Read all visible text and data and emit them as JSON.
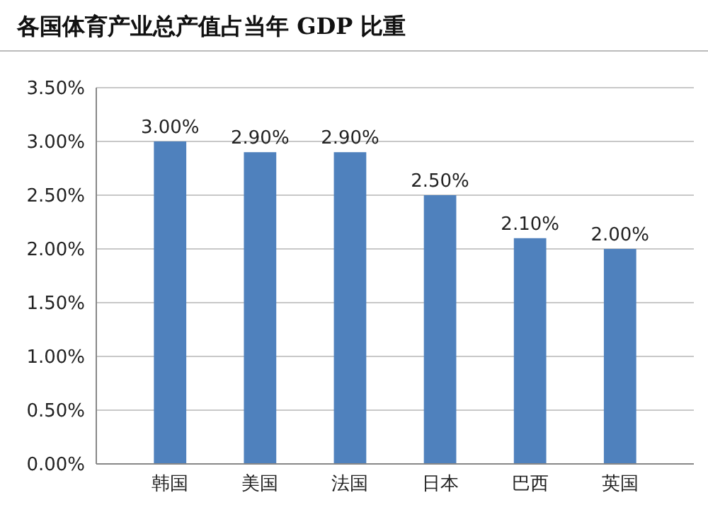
{
  "chart_data": {
    "type": "bar",
    "title": "各国体育产业总产值占当年 GDP 比重",
    "categories": [
      "韩国",
      "美国",
      "法国",
      "日本",
      "巴西",
      "英国"
    ],
    "values": [
      3.0,
      2.9,
      2.9,
      2.5,
      2.1,
      2.0
    ],
    "value_labels": [
      "3.00%",
      "2.90%",
      "2.90%",
      "2.50%",
      "2.10%",
      "2.00%"
    ],
    "color": "#4f81bd",
    "ylim": [
      0,
      3.5
    ],
    "yticks": [
      {
        "value": 0,
        "label": "0.00%"
      },
      {
        "value": 0.5,
        "label": "0.50%"
      },
      {
        "value": 1,
        "label": "1.00%"
      },
      {
        "value": 1.5,
        "label": "1.50%"
      },
      {
        "value": 2,
        "label": "2.00%"
      },
      {
        "value": 2.5,
        "label": "2.50%"
      },
      {
        "value": 3,
        "label": "3.00%"
      },
      {
        "value": 3.5,
        "label": "3.50%"
      }
    ],
    "grid": "y"
  }
}
